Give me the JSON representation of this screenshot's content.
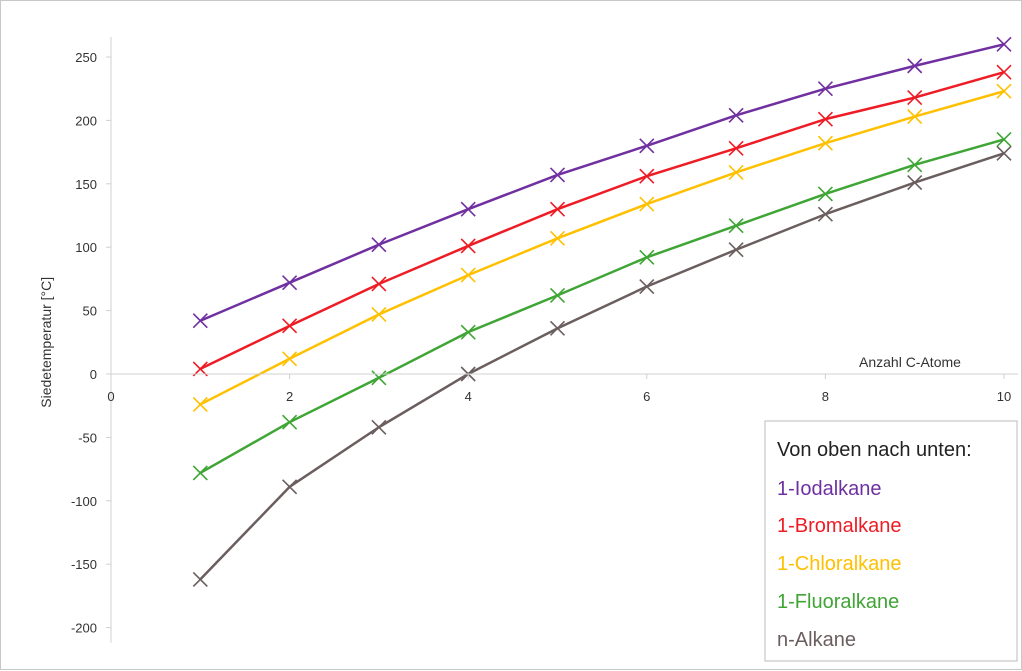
{
  "chart_data": {
    "type": "line",
    "xlabel": "Anzahl C-Atome",
    "ylabel": "Siedetemperatur [°C]",
    "xlim": [
      0,
      10
    ],
    "ylim": [
      -200,
      250
    ],
    "xticks": [
      0,
      2,
      4,
      6,
      8,
      10
    ],
    "yticks": [
      -200,
      -150,
      -100,
      -50,
      0,
      50,
      100,
      150,
      200,
      250
    ],
    "grid": false,
    "marker": "x",
    "x": [
      1,
      2,
      3,
      4,
      5,
      6,
      7,
      8,
      9,
      10
    ],
    "legend": {
      "title": "Von oben nach unten:",
      "placement": "bottom-right"
    },
    "series": [
      {
        "name": "1-Iodalkane",
        "color": "#7030a0",
        "values": [
          42,
          72,
          102,
          130,
          157,
          180,
          204,
          225,
          243,
          260
        ]
      },
      {
        "name": "1-Bromalkane",
        "color": "#ee1c25",
        "values": [
          4,
          38,
          71,
          101,
          130,
          156,
          178,
          201,
          218,
          238
        ]
      },
      {
        "name": "1-Chloralkane",
        "color": "#ffc000",
        "values": [
          -24,
          12,
          47,
          78,
          107,
          134,
          159,
          182,
          203,
          223
        ]
      },
      {
        "name": "1-Fluoralkane",
        "color": "#3fa535",
        "values": [
          -78,
          -38,
          -3,
          33,
          62,
          92,
          117,
          142,
          165,
          185
        ]
      },
      {
        "name": "n-Alkane",
        "color": "#6b5e5e",
        "values": [
          -162,
          -89,
          -42,
          0,
          36,
          69,
          98,
          126,
          151,
          174
        ]
      }
    ]
  }
}
